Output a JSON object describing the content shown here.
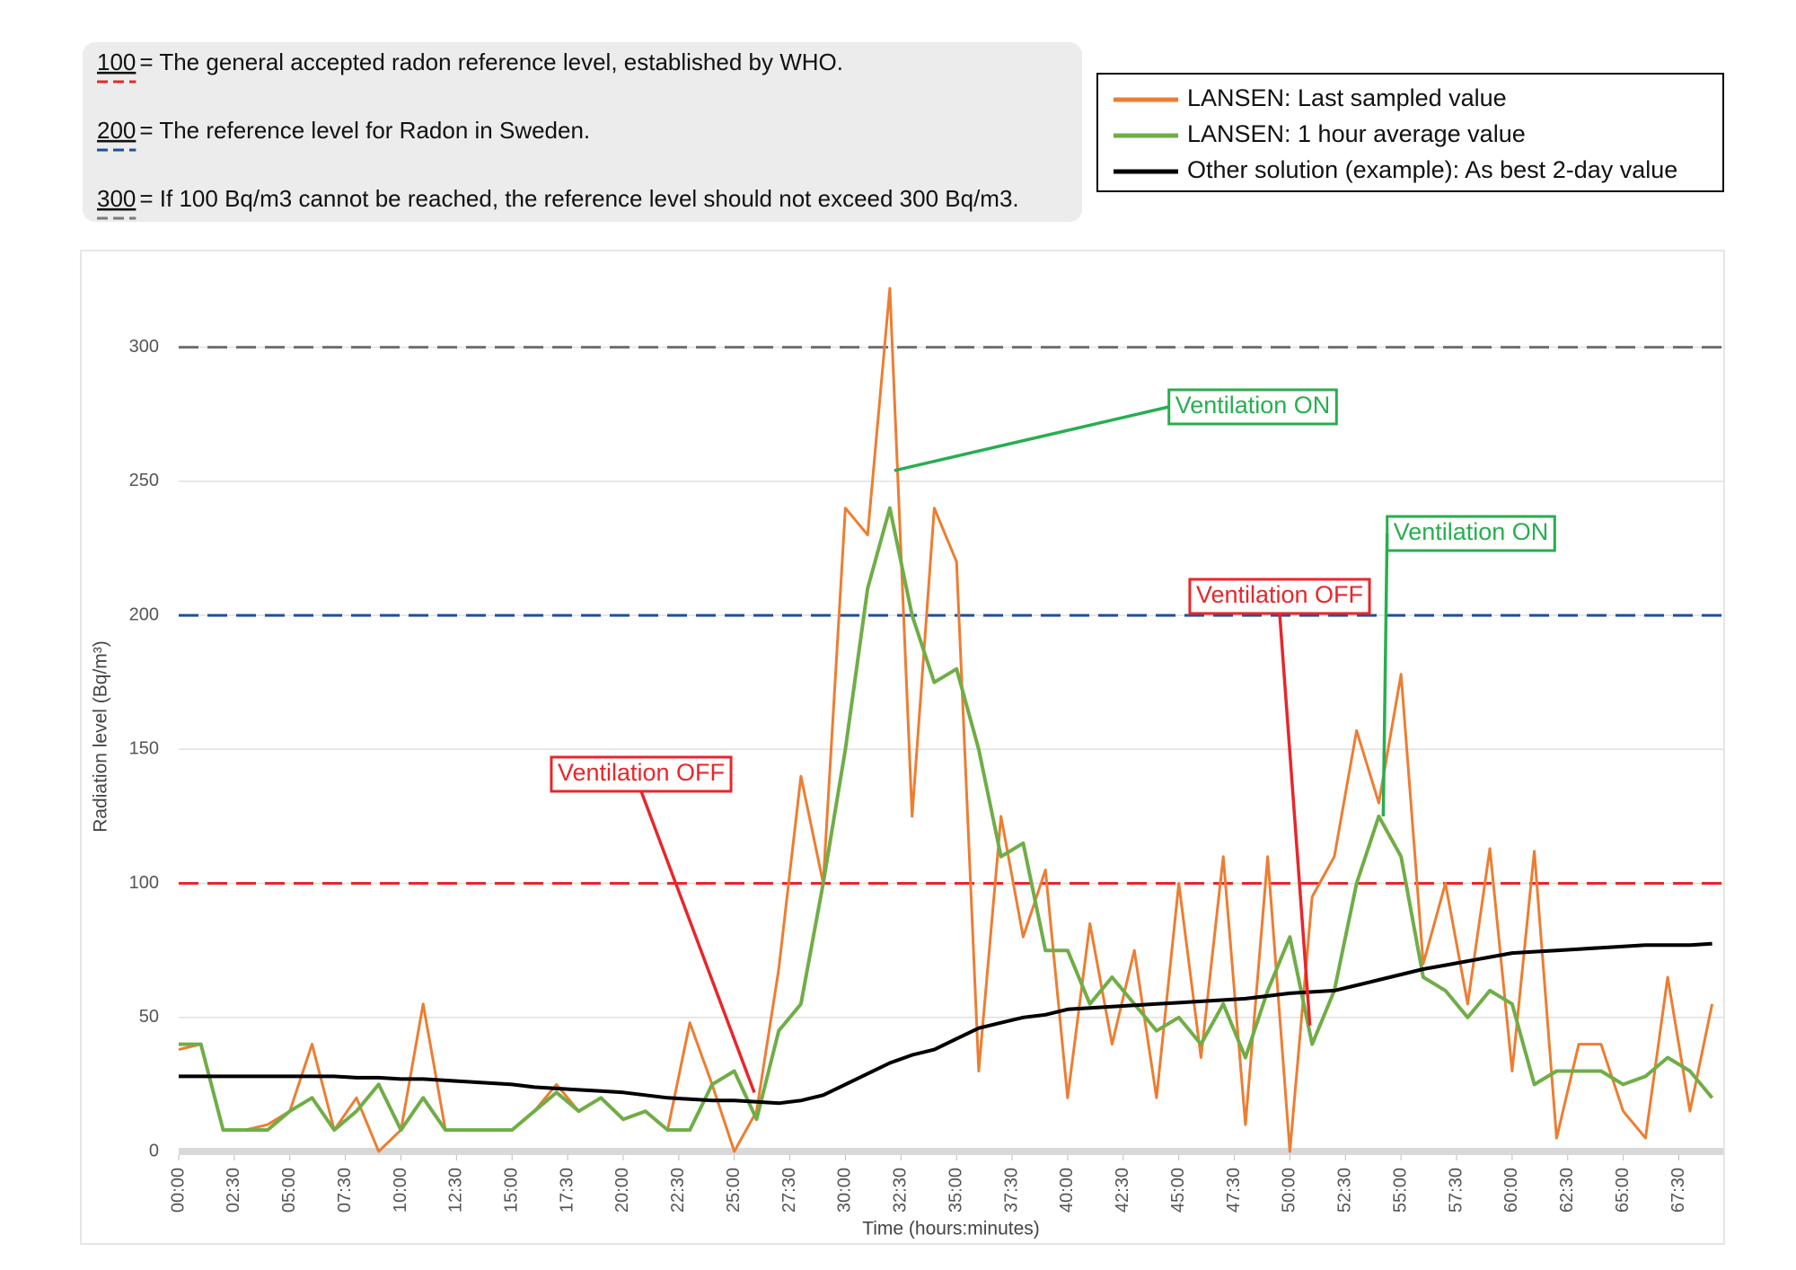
{
  "chart_data": {
    "type": "line",
    "notes": [
      {
        "level": "100",
        "text": "= The general accepted radon reference level, established by WHO.",
        "color": "#e8262b"
      },
      {
        "level": "200",
        "text": "= The reference level for Radon in Sweden.",
        "color": "#1f4e9c"
      },
      {
        "level": "300",
        "text": "= If 100 Bq/m3 cannot be reached, the reference level should not exceed 300 Bq/m3.",
        "color": "#7a7a7a"
      }
    ],
    "x_label": "Time (hours:minutes)",
    "y_label": "Radiation level (Bq/m³)",
    "legend": "top-right",
    "grid": true,
    "xlim": [
      0,
      69.5
    ],
    "ylim": [
      0,
      325
    ],
    "yticks": [
      0,
      50,
      100,
      150,
      200,
      250,
      300
    ],
    "xticks": [
      {
        "value": 0,
        "label": "00:00"
      },
      {
        "value": 2.5,
        "label": "02:30"
      },
      {
        "value": 5,
        "label": "05:00"
      },
      {
        "value": 7.5,
        "label": "07:30"
      },
      {
        "value": 10,
        "label": "10:00"
      },
      {
        "value": 12.5,
        "label": "12:30"
      },
      {
        "value": 15,
        "label": "15:00"
      },
      {
        "value": 17.5,
        "label": "17:30"
      },
      {
        "value": 20,
        "label": "20:00"
      },
      {
        "value": 22.5,
        "label": "22:30"
      },
      {
        "value": 25,
        "label": "25:00"
      },
      {
        "value": 27.5,
        "label": "27:30"
      },
      {
        "value": 30,
        "label": "30:00"
      },
      {
        "value": 32.5,
        "label": "32:30"
      },
      {
        "value": 35,
        "label": "35:00"
      },
      {
        "value": 37.5,
        "label": "37:30"
      },
      {
        "value": 40,
        "label": "40:00"
      },
      {
        "value": 42.5,
        "label": "42:30"
      },
      {
        "value": 45,
        "label": "45:00"
      },
      {
        "value": 47.5,
        "label": "47:30"
      },
      {
        "value": 50,
        "label": "50:00"
      },
      {
        "value": 52.5,
        "label": "52:30"
      },
      {
        "value": 55,
        "label": "55:00"
      },
      {
        "value": 57.5,
        "label": "57:30"
      },
      {
        "value": 60,
        "label": "60:00"
      },
      {
        "value": 62.5,
        "label": "62:30"
      },
      {
        "value": 65,
        "label": "65:00"
      },
      {
        "value": 67.5,
        "label": "67:30"
      }
    ],
    "reference_lines": [
      {
        "value": 100,
        "color": "#e8262b"
      },
      {
        "value": 200,
        "color": "#1f4e9c"
      },
      {
        "value": 300,
        "color": "#6f6f6f"
      }
    ],
    "x": [
      0,
      1,
      2,
      3,
      4,
      5,
      6,
      7,
      8,
      9,
      10,
      11,
      12,
      13,
      14,
      15,
      16,
      17,
      18,
      19,
      20,
      21,
      22,
      23,
      24,
      25,
      26,
      27,
      28,
      29,
      30,
      31,
      32,
      33,
      34,
      35,
      36,
      37,
      38,
      39,
      40,
      41,
      42,
      43,
      44,
      45,
      46,
      47,
      48,
      49,
      50,
      51,
      52,
      53,
      54,
      55,
      56,
      57,
      58,
      59,
      60,
      61,
      62,
      63,
      64,
      65,
      66,
      67,
      68,
      69
    ],
    "series": [
      {
        "name": "LANSEN: Last sampled value",
        "color": "#ed7d31",
        "width": 3,
        "values": [
          38,
          40,
          8,
          8,
          10,
          15,
          40,
          8,
          20,
          0,
          8,
          55,
          8,
          8,
          8,
          8,
          15,
          25,
          15,
          20,
          12,
          15,
          8,
          48,
          25,
          0,
          15,
          68,
          140,
          100,
          240,
          230,
          322,
          125,
          240,
          220,
          30,
          125,
          80,
          105,
          20,
          85,
          40,
          75,
          20,
          100,
          35,
          110,
          10,
          110,
          0,
          95,
          110,
          157,
          130,
          178,
          70,
          100,
          55,
          113,
          30,
          112,
          5,
          40,
          40,
          15,
          5,
          65,
          15,
          55
        ]
      },
      {
        "name": "LANSEN: 1 hour average value",
        "color": "#70ad47",
        "width": 4,
        "values": [
          40,
          40,
          8,
          8,
          8,
          15,
          20,
          8,
          15,
          25,
          8,
          20,
          8,
          8,
          8,
          8,
          15,
          22,
          15,
          20,
          12,
          15,
          8,
          8,
          25,
          30,
          12,
          45,
          55,
          100,
          150,
          210,
          240,
          200,
          175,
          180,
          150,
          110,
          115,
          75,
          75,
          55,
          65,
          55,
          45,
          50,
          40,
          55,
          35,
          60,
          80,
          40,
          60,
          100,
          125,
          110,
          65,
          60,
          50,
          60,
          55,
          25,
          30,
          30,
          30,
          25,
          28,
          35,
          30,
          20
        ]
      },
      {
        "name": "Other solution (example): As best 2-day value",
        "color": "#000000",
        "width": 4,
        "values": [
          28,
          28,
          28,
          28,
          28,
          28,
          28,
          28,
          27.5,
          27.5,
          27,
          27,
          26.5,
          26,
          25.5,
          25,
          24,
          23.5,
          23,
          22.5,
          22,
          21,
          20,
          19.5,
          19,
          19,
          18.5,
          18,
          19,
          21,
          25,
          29,
          33,
          36,
          38,
          42,
          46,
          48,
          50,
          51,
          53,
          53.5,
          54,
          54.5,
          55,
          55.5,
          56,
          56.5,
          57,
          58,
          59,
          59.5,
          60,
          62,
          64,
          66,
          68,
          69.5,
          71,
          72.5,
          74,
          74.5,
          75,
          75.5,
          76,
          76.5,
          77,
          77,
          77,
          77.5
        ]
      }
    ],
    "annotations": [
      {
        "text": "Ventilation OFF",
        "color": "#e8262b",
        "x": 25.9,
        "y": 22
      },
      {
        "text": "Ventilation ON",
        "color": "#27ae4f",
        "x": 32.2,
        "y": 254
      },
      {
        "text": "Ventilation OFF",
        "color": "#e8262b",
        "x": 50.9,
        "y": 47
      },
      {
        "text": "Ventilation ON",
        "color": "#27ae4f",
        "x": 54.2,
        "y": 125
      }
    ]
  }
}
